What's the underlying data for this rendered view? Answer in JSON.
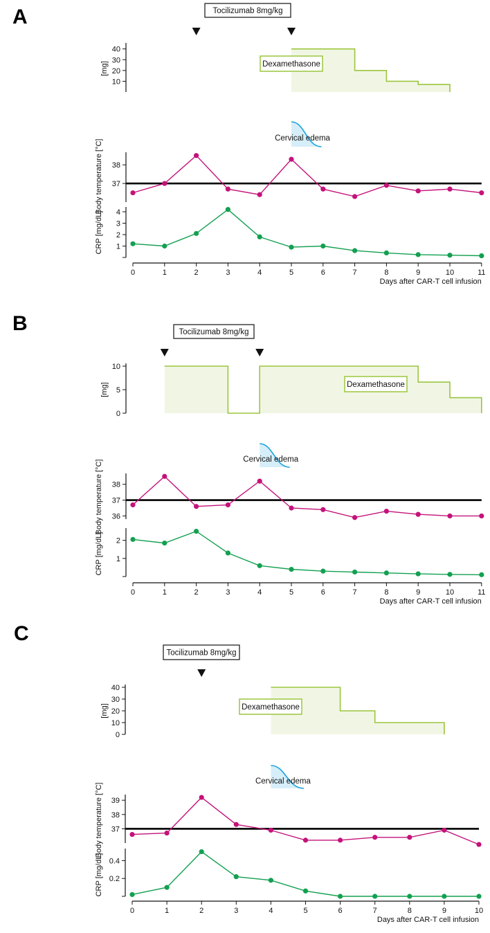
{
  "colors": {
    "temperature": "#c4127a",
    "crp": "#13a050",
    "dexamethasone_line": "#9bc53d",
    "dexamethasone_fill": "#f1f6e4",
    "edema": "#1aa3d9",
    "edema_fill": "#d6eef9",
    "axis": "#111111"
  },
  "icons": {
    "tocilizumab_marker": "down-triangle"
  },
  "chart_data": [
    {
      "panel": "A",
      "type": "line",
      "tocilizumab_label": "Tocilizumab 8mg/kg",
      "tocilizumab_days": [
        2,
        5
      ],
      "dexamethasone": {
        "label": "Dexamethasone",
        "ylabel": "[mg]",
        "yticks": [
          10,
          20,
          30,
          40
        ],
        "ylim": [
          0,
          43
        ],
        "steps": [
          {
            "start": 5,
            "end": 7,
            "dose": 40
          },
          {
            "start": 7,
            "end": 8,
            "dose": 20
          },
          {
            "start": 8,
            "end": 9,
            "dose": 10
          },
          {
            "start": 9,
            "end": 10,
            "dose": 7
          }
        ]
      },
      "edema": {
        "label": "Cervical edema",
        "start": 5,
        "end": 6
      },
      "temperature": {
        "ylabel": "Body temperature [°C]",
        "yticks": [
          37,
          38
        ],
        "ylim": [
          36.0,
          38.6
        ],
        "reference": 37,
        "values": [
          36.5,
          37.0,
          38.5,
          36.7,
          36.4,
          38.3,
          36.7,
          36.3,
          36.9,
          36.6,
          36.7,
          36.5
        ]
      },
      "crp": {
        "ylabel": "CRP [mg/dL]",
        "yticks": [
          1,
          2,
          3,
          4
        ],
        "ylim": [
          0,
          4.3
        ],
        "values": [
          1.2,
          1.0,
          2.1,
          4.2,
          1.8,
          0.9,
          1.0,
          0.6,
          0.4,
          0.25,
          0.2,
          0.15
        ]
      },
      "x": [
        0,
        1,
        2,
        3,
        4,
        5,
        6,
        7,
        8,
        9,
        10,
        11
      ],
      "xlabel": "Days after CAR-T cell infusion"
    },
    {
      "panel": "B",
      "type": "line",
      "tocilizumab_label": "Tocilizumab 8mg/kg",
      "tocilizumab_days": [
        1,
        4
      ],
      "dexamethasone": {
        "label": "Dexamethasone",
        "ylabel": "[mg]",
        "yticks": [
          0,
          5,
          10
        ],
        "ylim": [
          0,
          10
        ],
        "steps": [
          {
            "start": 1,
            "end": 3,
            "dose": 10
          },
          {
            "start": 3,
            "end": 4,
            "dose": 0
          },
          {
            "start": 4,
            "end": 9,
            "dose": 10
          },
          {
            "start": 9,
            "end": 10,
            "dose": 6.6
          },
          {
            "start": 10,
            "end": 11,
            "dose": 3.3
          }
        ]
      },
      "edema": {
        "label": "Cervical edema",
        "start": 4,
        "end": 5
      },
      "temperature": {
        "ylabel": "Body temperature [°C]",
        "yticks": [
          36,
          37,
          38
        ],
        "ylim": [
          35.8,
          38.6
        ],
        "reference": 37,
        "values": [
          36.7,
          38.5,
          36.6,
          36.7,
          38.2,
          36.5,
          36.4,
          35.9,
          36.3,
          36.1,
          36.0,
          36.0
        ]
      },
      "crp": {
        "ylabel": "CRP [mg/dL]",
        "yticks": [
          1,
          2
        ],
        "ylim": [
          0,
          2.6
        ],
        "values": [
          2.05,
          1.85,
          2.5,
          1.3,
          0.6,
          0.4,
          0.3,
          0.25,
          0.2,
          0.15,
          0.12,
          0.1
        ]
      },
      "x": [
        0,
        1,
        2,
        3,
        4,
        5,
        6,
        7,
        8,
        9,
        10,
        11
      ],
      "xlabel": "Days after CAR-T cell infusion"
    },
    {
      "panel": "C",
      "type": "line",
      "tocilizumab_label": "Tocilizumab 8mg/kg",
      "tocilizumab_days": [
        2
      ],
      "dexamethasone": {
        "label": "Dexamethasone",
        "ylabel": "[mg]",
        "yticks": [
          0,
          10,
          20,
          30,
          40
        ],
        "ylim": [
          0,
          40
        ],
        "steps": [
          {
            "start": 4,
            "end": 6,
            "dose": 40
          },
          {
            "start": 6,
            "end": 7,
            "dose": 20
          },
          {
            "start": 7,
            "end": 9,
            "dose": 10
          }
        ]
      },
      "edema": {
        "label": "Cervical edema",
        "start": 4,
        "end": 5
      },
      "temperature": {
        "ylabel": "Body temperature [°C]",
        "yticks": [
          37,
          38,
          39
        ],
        "ylim": [
          36.0,
          39.3
        ],
        "reference": 37,
        "values": [
          36.6,
          36.7,
          39.2,
          37.3,
          36.9,
          36.2,
          36.2,
          36.4,
          36.4,
          36.9,
          35.9
        ]
      },
      "crp": {
        "ylabel": "CRP [mg/dL]",
        "yticks": [
          0.2,
          0.4
        ],
        "ylim": [
          0,
          0.52
        ],
        "values": [
          0.02,
          0.1,
          0.5,
          0.22,
          0.18,
          0.06,
          0.0,
          0.0,
          0.0,
          0.0,
          0.0
        ]
      },
      "x": [
        0,
        1,
        2,
        3,
        4,
        5,
        6,
        7,
        8,
        9,
        10
      ],
      "xlabel": "Days after CAR-T cell infusion"
    }
  ]
}
